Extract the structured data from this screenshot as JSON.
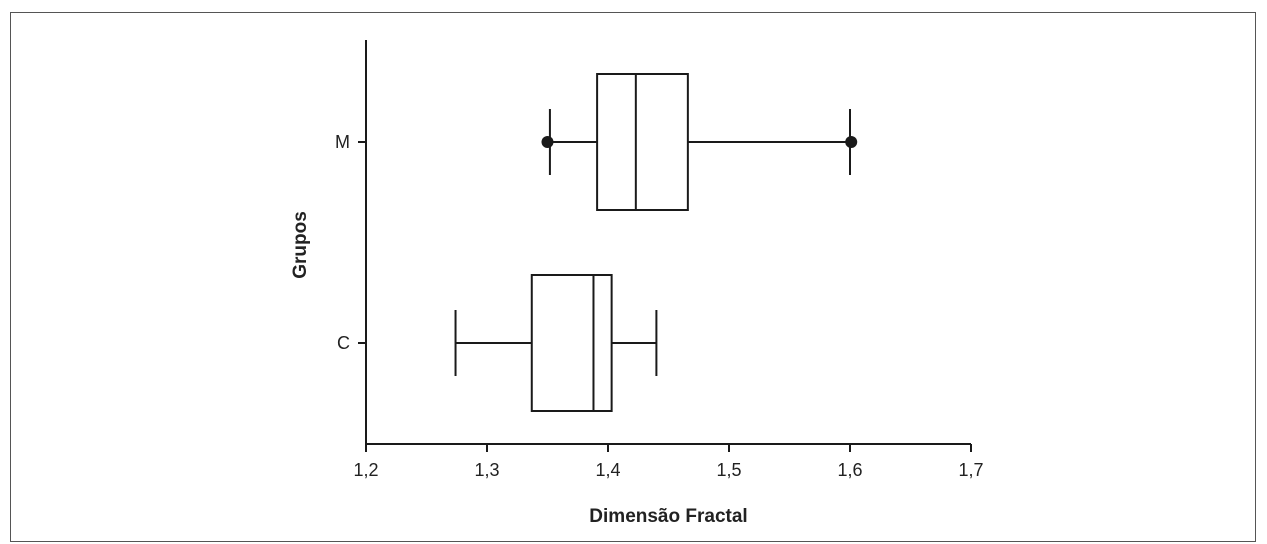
{
  "chart_data": {
    "type": "boxplot",
    "orientation": "horizontal",
    "title": "",
    "xlabel": "Dimensão Fractal",
    "ylabel": "Grupos",
    "xlim": [
      1.2,
      1.7
    ],
    "x_ticks": [
      1.2,
      1.3,
      1.4,
      1.5,
      1.6,
      1.7
    ],
    "x_tick_labels": [
      "1,2",
      "1,3",
      "1,4",
      "1,5",
      "1,6",
      "1,7"
    ],
    "categories": [
      "M",
      "C"
    ],
    "grid": false,
    "boxes": [
      {
        "group": "M",
        "whisker_low": 1.352,
        "q1": 1.391,
        "median": 1.423,
        "q3": 1.466,
        "whisker_high": 1.6,
        "outliers": [
          1.35,
          1.601
        ]
      },
      {
        "group": "C",
        "whisker_low": 1.274,
        "q1": 1.337,
        "median": 1.388,
        "q3": 1.403,
        "whisker_high": 1.44,
        "outliers": []
      }
    ]
  }
}
